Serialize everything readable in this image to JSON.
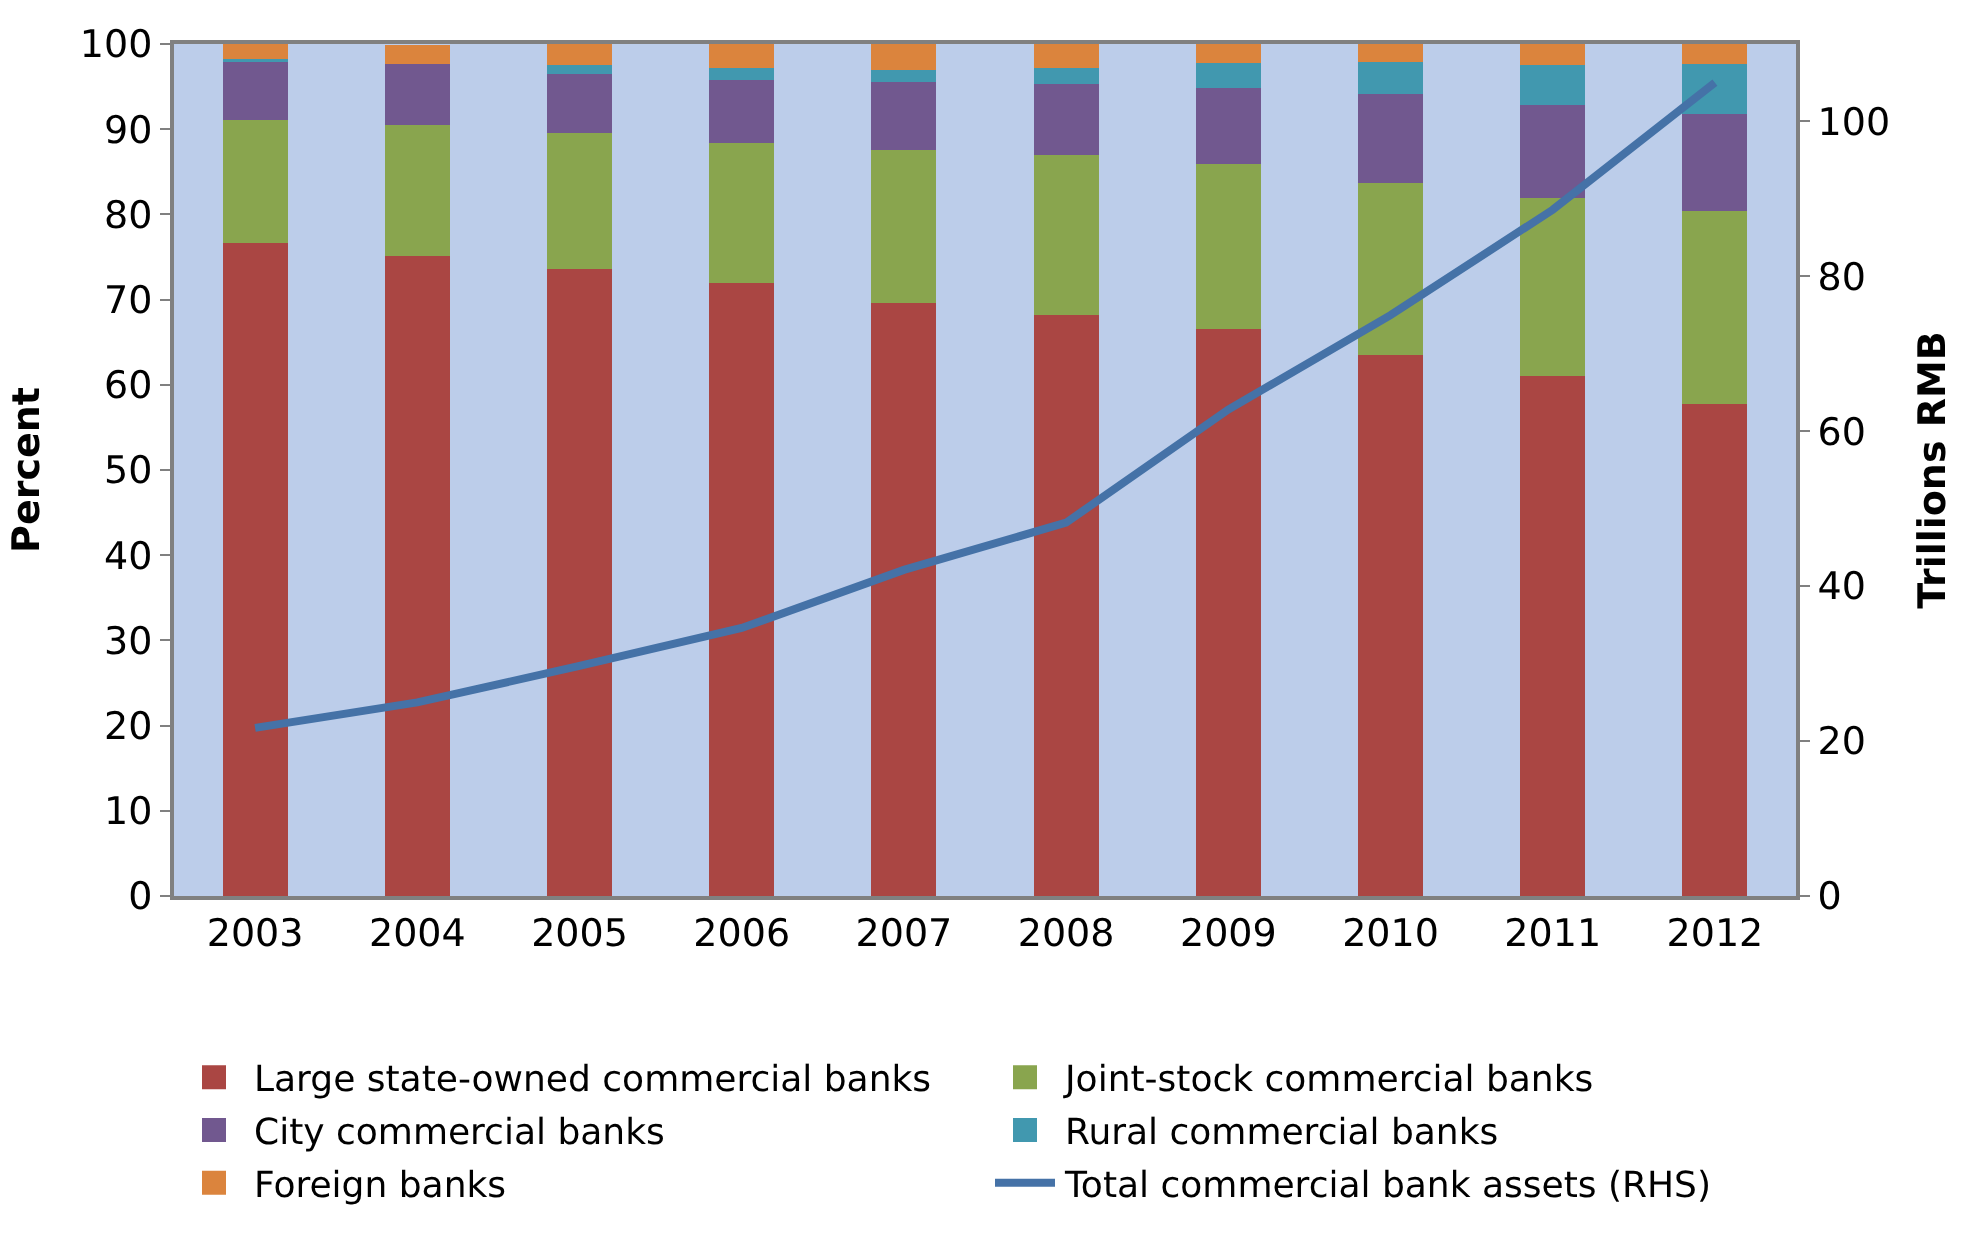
{
  "chart_data": {
    "type": "bar",
    "stacked": true,
    "categories": [
      "2003",
      "2004",
      "2005",
      "2006",
      "2007",
      "2008",
      "2009",
      "2010",
      "2011",
      "2012"
    ],
    "ylabel": "Percent",
    "y2label": "Trillions RMB",
    "ylim": [
      0,
      100
    ],
    "yticks": [
      0,
      10,
      20,
      30,
      40,
      50,
      60,
      70,
      80,
      90,
      100
    ],
    "y2lim": [
      0,
      110
    ],
    "y2ticks": [
      0,
      20,
      40,
      60,
      80,
      100
    ],
    "legend": "bottom",
    "grid": false,
    "series": [
      {
        "name": "Large state-owned commercial banks",
        "color": "#aa4643",
        "values": [
          76.7,
          75.1,
          73.6,
          71.9,
          69.6,
          68.2,
          66.6,
          63.5,
          61.0,
          57.8
        ]
      },
      {
        "name": "Joint-stock commercial banks",
        "color": "#89a54e",
        "values": [
          14.4,
          15.4,
          16.0,
          16.5,
          18.0,
          18.8,
          19.3,
          20.2,
          20.9,
          22.6
        ]
      },
      {
        "name": "City commercial banks",
        "color": "#71588f",
        "values": [
          6.9,
          7.1,
          6.9,
          7.4,
          7.9,
          8.3,
          8.9,
          10.4,
          10.9,
          11.4
        ]
      },
      {
        "name": "Rural commercial banks",
        "color": "#4198af",
        "values": [
          0.2,
          null,
          1.0,
          1.4,
          1.5,
          1.9,
          3.0,
          3.8,
          4.7,
          5.9
        ]
      },
      {
        "name": "Foreign banks",
        "color": "#db843d",
        "values": [
          1.8,
          2.3,
          2.5,
          2.8,
          3.0,
          2.8,
          2.2,
          2.1,
          2.5,
          2.3
        ]
      },
      {
        "name": "Total commercial bank assets (RHS)",
        "type": "line",
        "axis": "y2",
        "color": "#4572a7",
        "values": [
          21.7,
          25.0,
          29.7,
          34.6,
          42.1,
          48.2,
          62.8,
          75.0,
          88.6,
          105.0
        ]
      }
    ]
  }
}
